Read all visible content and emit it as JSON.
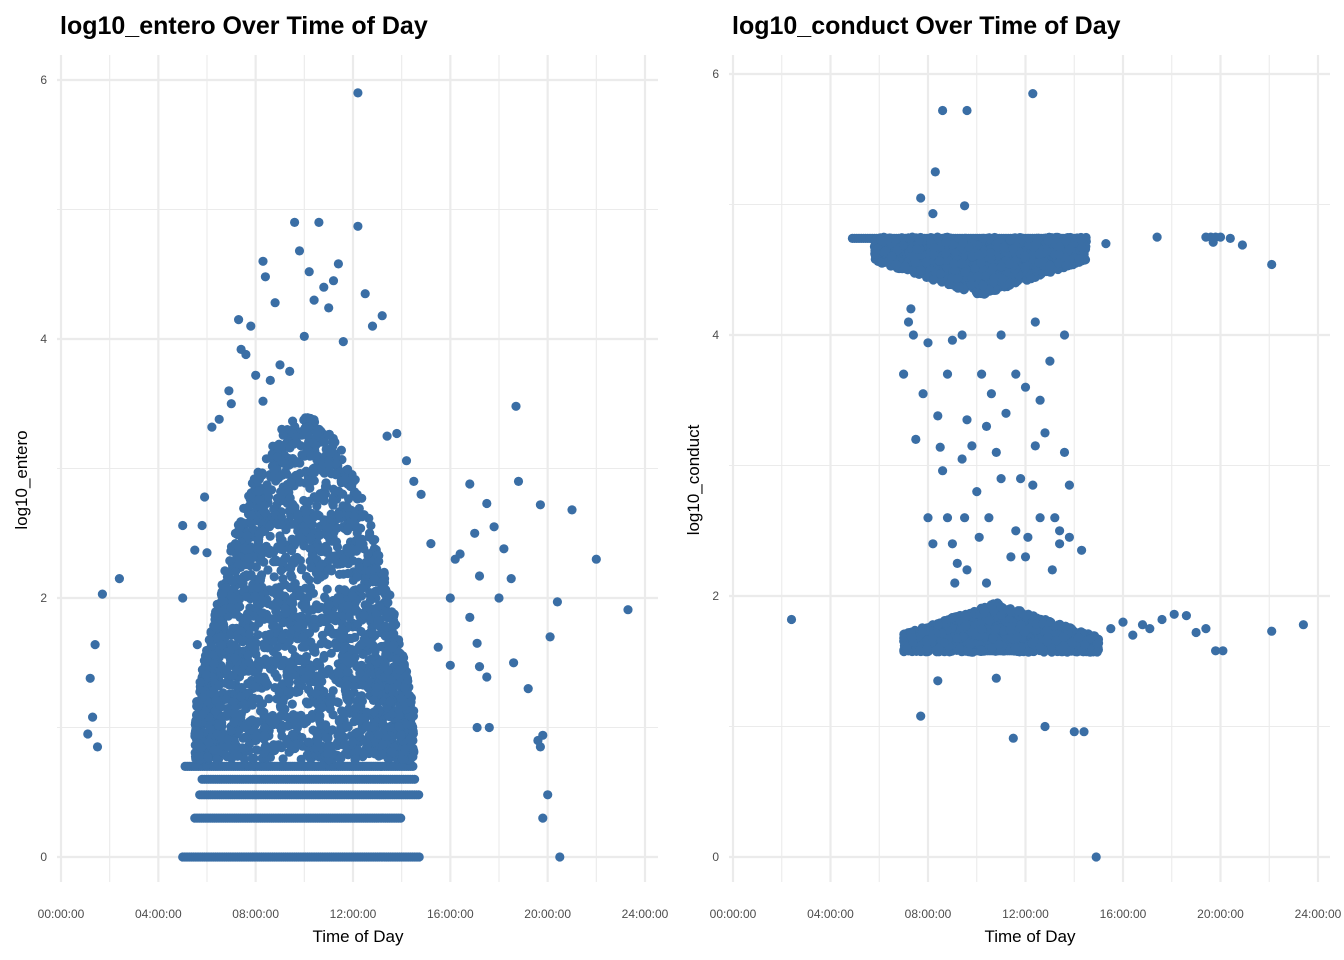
{
  "chart_data": [
    {
      "type": "scatter",
      "title": "log10_entero Over Time of Day",
      "xlabel": "Time of Day",
      "ylabel": "log10_entero",
      "xlim": [
        0,
        24
      ],
      "ylim": [
        -0.2,
        6.2
      ],
      "x_ticks": [
        "00:00:00",
        "04:00:00",
        "08:00:00",
        "12:00:00",
        "16:00:00",
        "20:00:00",
        "24:00:00"
      ],
      "y_ticks": [
        "0",
        "2",
        "4",
        "6"
      ],
      "grid": true,
      "point_color": "#3A6EA5",
      "bands": [
        {
          "y": 0,
          "x_start": 5.0,
          "x_end": 14.8
        },
        {
          "y": 0.3,
          "x_start": 5.5,
          "x_end": 14.0
        },
        {
          "y": 0.48,
          "x_start": 5.7,
          "x_end": 14.7
        },
        {
          "y": 0.6,
          "x_start": 5.8,
          "x_end": 14.6
        },
        {
          "y": 0.7,
          "x_start": 5.1,
          "x_end": 14.5
        }
      ],
      "dense_cluster": {
        "x_start": 5.5,
        "x_end": 14.5,
        "y_bottom": 0.75,
        "y_top_at_peak": 3.4,
        "peak_x": 10.0
      },
      "points": [
        [
          1.1,
          0.95
        ],
        [
          1.2,
          1.38
        ],
        [
          1.3,
          1.08
        ],
        [
          1.4,
          1.64
        ],
        [
          1.5,
          0.85
        ],
        [
          1.7,
          2.03
        ],
        [
          2.4,
          2.15
        ],
        [
          5.0,
          2.56
        ],
        [
          5.0,
          2.0
        ],
        [
          5.5,
          2.37
        ],
        [
          5.6,
          1.64
        ],
        [
          5.8,
          2.56
        ],
        [
          5.9,
          2.78
        ],
        [
          6.0,
          2.35
        ],
        [
          6.2,
          3.32
        ],
        [
          6.5,
          3.38
        ],
        [
          6.9,
          3.6
        ],
        [
          7.0,
          3.5
        ],
        [
          7.3,
          4.15
        ],
        [
          7.4,
          3.92
        ],
        [
          7.6,
          3.88
        ],
        [
          7.8,
          4.1
        ],
        [
          8.0,
          3.72
        ],
        [
          8.3,
          3.52
        ],
        [
          8.3,
          4.6
        ],
        [
          8.4,
          4.48
        ],
        [
          8.6,
          3.68
        ],
        [
          8.8,
          4.28
        ],
        [
          9.0,
          3.8
        ],
        [
          9.4,
          3.75
        ],
        [
          9.6,
          4.9
        ],
        [
          9.8,
          4.68
        ],
        [
          10.0,
          4.02
        ],
        [
          10.2,
          4.52
        ],
        [
          10.4,
          4.3
        ],
        [
          10.6,
          4.9
        ],
        [
          10.8,
          4.4
        ],
        [
          11.0,
          4.24
        ],
        [
          11.2,
          4.45
        ],
        [
          11.4,
          4.58
        ],
        [
          11.6,
          3.98
        ],
        [
          12.2,
          5.9
        ],
        [
          12.2,
          4.87
        ],
        [
          12.5,
          4.35
        ],
        [
          12.8,
          4.1
        ],
        [
          13.2,
          4.18
        ],
        [
          13.4,
          3.25
        ],
        [
          13.8,
          3.27
        ],
        [
          14.2,
          3.06
        ],
        [
          14.5,
          2.9
        ],
        [
          14.8,
          2.8
        ],
        [
          15.2,
          2.42
        ],
        [
          15.5,
          1.62
        ],
        [
          16.0,
          2.0
        ],
        [
          16.2,
          2.3
        ],
        [
          16.4,
          2.34
        ],
        [
          16.8,
          2.88
        ],
        [
          17.0,
          2.5
        ],
        [
          17.2,
          2.17
        ],
        [
          17.5,
          2.73
        ],
        [
          17.8,
          2.55
        ],
        [
          18.0,
          2.0
        ],
        [
          18.2,
          2.38
        ],
        [
          18.5,
          2.15
        ],
        [
          18.7,
          3.48
        ],
        [
          18.8,
          2.9
        ],
        [
          16.0,
          1.48
        ],
        [
          16.8,
          1.85
        ],
        [
          17.1,
          1.65
        ],
        [
          17.2,
          1.47
        ],
        [
          17.5,
          1.39
        ],
        [
          17.1,
          1.0
        ],
        [
          17.6,
          1.0
        ],
        [
          18.6,
          1.5
        ],
        [
          19.2,
          1.3
        ],
        [
          19.6,
          0.9
        ],
        [
          19.7,
          0.85
        ],
        [
          19.8,
          0.94
        ],
        [
          19.8,
          0.3
        ],
        [
          20.0,
          0.48
        ],
        [
          20.1,
          1.7
        ],
        [
          20.4,
          1.97
        ],
        [
          20.5,
          0.0
        ],
        [
          19.7,
          2.72
        ],
        [
          21.0,
          2.68
        ],
        [
          22.0,
          2.3
        ],
        [
          23.3,
          1.91
        ]
      ]
    },
    {
      "type": "scatter",
      "title": "log10_conduct Over Time of Day",
      "xlabel": "Time of Day",
      "ylabel": "log10_conduct",
      "xlim": [
        0,
        24
      ],
      "ylim": [
        -0.2,
        6.2
      ],
      "x_ticks": [
        "00:00:00",
        "04:00:00",
        "08:00:00",
        "12:00:00",
        "16:00:00",
        "20:00:00",
        "24:00:00"
      ],
      "y_ticks": [
        "0",
        "2",
        "4",
        "6"
      ],
      "grid": true,
      "point_color": "#3A6EA5",
      "bands": [
        {
          "y": 4.74,
          "x_start": 4.9,
          "x_end": 14.5
        },
        {
          "y": 1.58,
          "x_start": 10.0,
          "x_end": 11.6
        }
      ],
      "dense_cluster_top": {
        "x_start": 5.8,
        "x_end": 14.5,
        "y_top": 4.75,
        "y_bottom": 4.3
      },
      "dense_cluster_bottom": {
        "x_start": 7.0,
        "x_end": 15.0,
        "y_top": 1.95,
        "y_bottom": 1.57
      },
      "points": [
        [
          2.4,
          1.82
        ],
        [
          7.7,
          1.08
        ],
        [
          8.4,
          1.35
        ],
        [
          10.8,
          1.37
        ],
        [
          11.5,
          0.91
        ],
        [
          12.8,
          1.0
        ],
        [
          14.0,
          0.96
        ],
        [
          14.4,
          0.96
        ],
        [
          14.9,
          0.0
        ],
        [
          8.6,
          5.72
        ],
        [
          9.6,
          5.72
        ],
        [
          12.3,
          5.85
        ],
        [
          8.3,
          5.25
        ],
        [
          7.7,
          5.05
        ],
        [
          8.2,
          4.93
        ],
        [
          9.5,
          4.99
        ],
        [
          15.3,
          4.7
        ],
        [
          17.4,
          4.75
        ],
        [
          19.4,
          4.75
        ],
        [
          19.6,
          4.75
        ],
        [
          19.7,
          4.71
        ],
        [
          19.8,
          4.75
        ],
        [
          20.0,
          4.75
        ],
        [
          20.4,
          4.74
        ],
        [
          20.9,
          4.69
        ],
        [
          22.1,
          4.54
        ],
        [
          15.0,
          1.64
        ],
        [
          15.5,
          1.75
        ],
        [
          16.0,
          1.8
        ],
        [
          16.4,
          1.7
        ],
        [
          16.8,
          1.78
        ],
        [
          17.1,
          1.75
        ],
        [
          17.6,
          1.82
        ],
        [
          18.1,
          1.86
        ],
        [
          18.6,
          1.85
        ],
        [
          19.0,
          1.72
        ],
        [
          19.4,
          1.75
        ],
        [
          19.8,
          1.58
        ],
        [
          20.1,
          1.58
        ],
        [
          22.1,
          1.73
        ],
        [
          23.4,
          1.78
        ],
        [
          7.0,
          3.7
        ],
        [
          7.2,
          4.1
        ],
        [
          7.4,
          4.0
        ],
        [
          7.5,
          3.2
        ],
        [
          7.8,
          3.55
        ],
        [
          8.0,
          2.6
        ],
        [
          8.2,
          2.4
        ],
        [
          8.4,
          3.38
        ],
        [
          8.5,
          3.14
        ],
        [
          8.6,
          2.96
        ],
        [
          8.8,
          3.7
        ],
        [
          9.0,
          3.96
        ],
        [
          9.1,
          2.1
        ],
        [
          9.2,
          2.25
        ],
        [
          9.4,
          3.05
        ],
        [
          9.5,
          2.6
        ],
        [
          9.6,
          3.35
        ],
        [
          9.8,
          3.15
        ],
        [
          10.0,
          2.8
        ],
        [
          10.1,
          2.45
        ],
        [
          10.2,
          3.7
        ],
        [
          10.4,
          3.3
        ],
        [
          10.5,
          2.6
        ],
        [
          10.6,
          3.55
        ],
        [
          10.8,
          3.1
        ],
        [
          11.0,
          2.9
        ],
        [
          11.2,
          3.4
        ],
        [
          11.4,
          2.3
        ],
        [
          11.6,
          3.7
        ],
        [
          11.8,
          2.9
        ],
        [
          12.0,
          3.6
        ],
        [
          12.1,
          2.45
        ],
        [
          12.3,
          2.85
        ],
        [
          12.4,
          3.15
        ],
        [
          12.6,
          3.5
        ],
        [
          12.8,
          3.25
        ],
        [
          13.0,
          3.8
        ],
        [
          13.1,
          2.2
        ],
        [
          13.2,
          2.6
        ],
        [
          13.4,
          2.5
        ],
        [
          13.6,
          3.1
        ],
        [
          13.8,
          2.85
        ],
        [
          13.8,
          2.45
        ],
        [
          14.3,
          2.35
        ],
        [
          14.2,
          4.58
        ],
        [
          13.6,
          4.0
        ],
        [
          12.4,
          4.1
        ],
        [
          11.0,
          4.0
        ],
        [
          9.4,
          4.0
        ],
        [
          8.0,
          3.94
        ],
        [
          7.3,
          4.2
        ],
        [
          8.8,
          2.6
        ],
        [
          9.0,
          2.4
        ],
        [
          9.6,
          2.2
        ],
        [
          10.4,
          2.1
        ],
        [
          11.6,
          2.5
        ],
        [
          12.0,
          2.3
        ],
        [
          12.6,
          2.6
        ],
        [
          13.4,
          2.4
        ]
      ]
    }
  ]
}
